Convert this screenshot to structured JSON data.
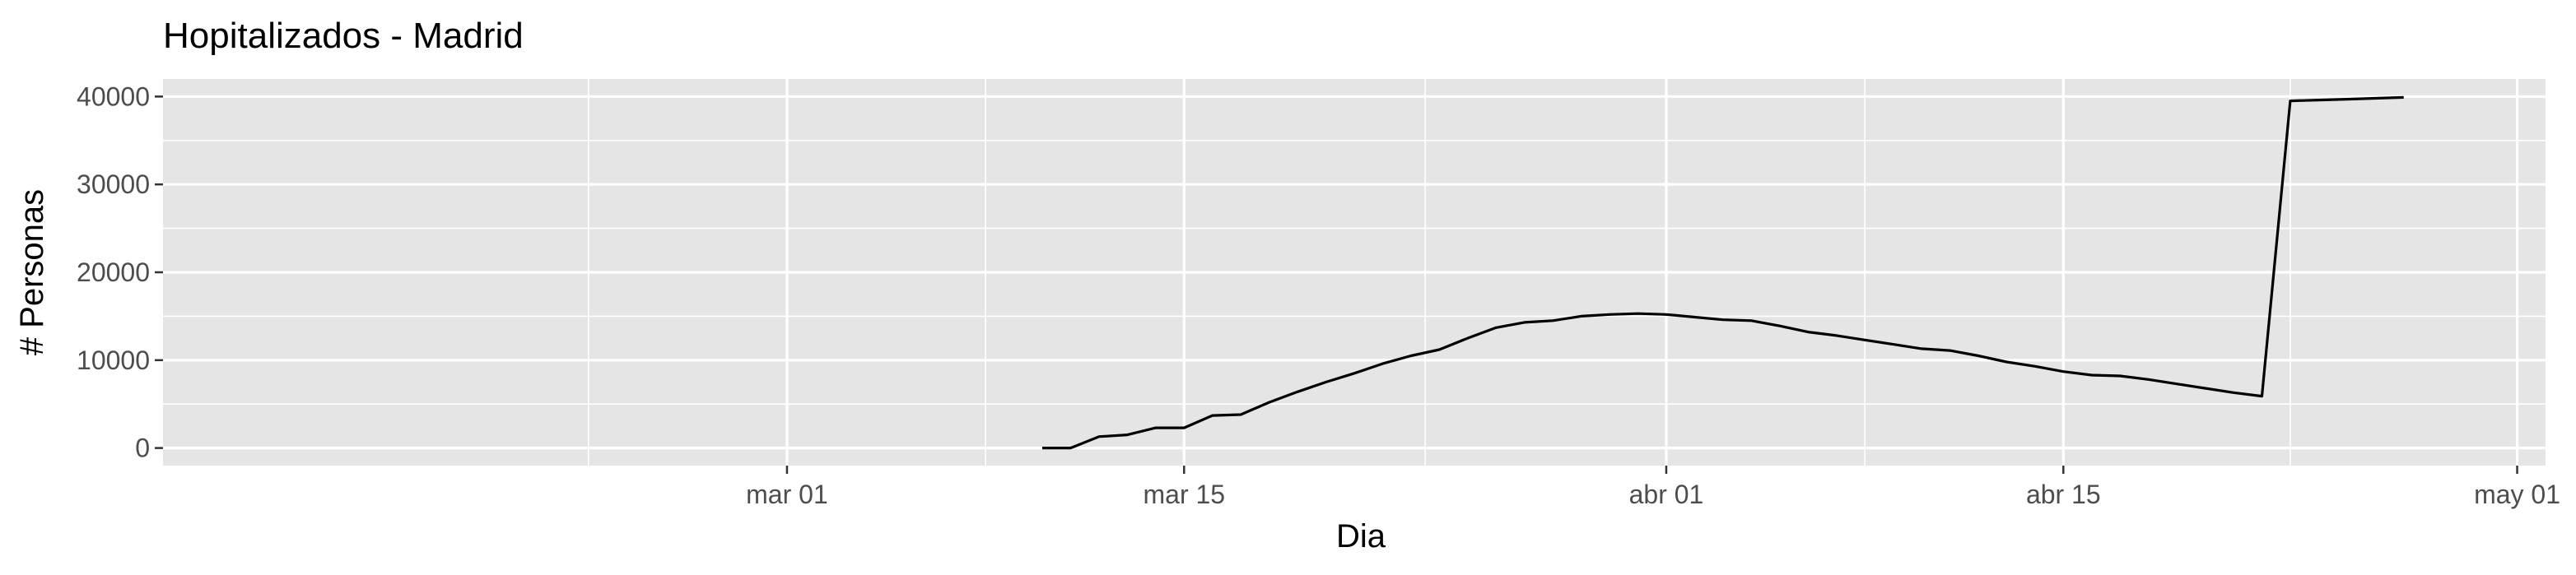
{
  "chart_data": {
    "type": "line",
    "title": "Hopitalizados - Madrid",
    "xlabel": "Dia",
    "ylabel": "# Personas",
    "x_tick_labels": [
      "mar 01",
      "mar 15",
      "abr 01",
      "abr 15",
      "may 01"
    ],
    "x_ticks": [
      "2020-03-01",
      "2020-03-15",
      "2020-04-01",
      "2020-04-15",
      "2020-05-01"
    ],
    "y_ticks": [
      0,
      10000,
      20000,
      30000,
      40000
    ],
    "y_tick_labels": [
      "0",
      "10000",
      "20000",
      "30000",
      "40000"
    ],
    "xlim": [
      "2020-02-08",
      "2020-05-02"
    ],
    "ylim": [
      -2000,
      42000
    ],
    "grid": true,
    "panel_background": "#e5e5e5",
    "grid_color": "#ffffff",
    "line_color": "#000000",
    "series": [
      {
        "x": [
          "2020-03-10",
          "2020-03-11",
          "2020-03-12",
          "2020-03-13",
          "2020-03-14",
          "2020-03-15",
          "2020-03-16",
          "2020-03-17",
          "2020-03-18",
          "2020-03-19",
          "2020-03-20",
          "2020-03-21",
          "2020-03-22",
          "2020-03-23",
          "2020-03-24",
          "2020-03-25",
          "2020-03-26",
          "2020-03-27",
          "2020-03-28",
          "2020-03-29",
          "2020-03-30",
          "2020-03-31",
          "2020-04-01",
          "2020-04-02",
          "2020-04-03",
          "2020-04-04",
          "2020-04-05",
          "2020-04-06",
          "2020-04-07",
          "2020-04-08",
          "2020-04-09",
          "2020-04-10",
          "2020-04-11",
          "2020-04-12",
          "2020-04-13",
          "2020-04-14",
          "2020-04-15",
          "2020-04-16",
          "2020-04-17",
          "2020-04-18",
          "2020-04-19",
          "2020-04-20",
          "2020-04-21",
          "2020-04-22",
          "2020-04-23",
          "2020-04-24",
          "2020-04-25",
          "2020-04-26",
          "2020-04-27"
        ],
        "values": [
          0,
          0,
          1300,
          1500,
          2300,
          2300,
          3700,
          3800,
          5200,
          6400,
          7500,
          8500,
          9600,
          10500,
          11200,
          12500,
          13700,
          14300,
          14500,
          15000,
          15200,
          15300,
          15200,
          14900,
          14600,
          14500,
          13900,
          13200,
          12800,
          12300,
          11800,
          11300,
          11100,
          10500,
          9800,
          9300,
          8700,
          8300,
          8200,
          7800,
          7300,
          6800,
          6300,
          5900,
          39500,
          39600,
          39700,
          39800,
          39900
        ]
      }
    ]
  }
}
